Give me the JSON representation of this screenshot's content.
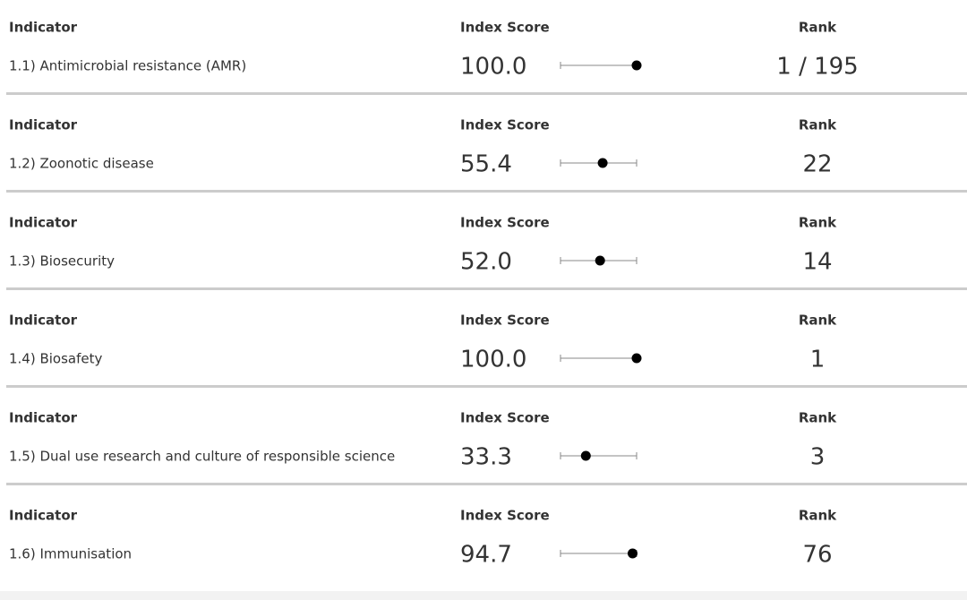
{
  "columns": [
    "Indicator",
    "Index Score",
    "Rank"
  ],
  "score_range": [
    0,
    100
  ],
  "rows": [
    {
      "indicator": "1.1) Antimicrobial resistance (AMR)",
      "score": {
        "value": 100,
        "label": "100.0"
      },
      "rank": "1 / 195"
    },
    {
      "indicator": "1.2) Zoonotic disease",
      "score": {
        "value": 55.4,
        "label": "55.4"
      },
      "rank": 22
    },
    {
      "indicator": "1.3) Biosecurity",
      "score": {
        "value": 52,
        "label": "52.0"
      },
      "rank": 14
    },
    {
      "indicator": "1.4) Biosafety",
      "score": {
        "value": 100,
        "label": "100.0"
      },
      "rank": 1
    },
    {
      "indicator": "1.5) Dual use research and culture of responsible science",
      "score": {
        "value": 33.3,
        "label": "33.3"
      },
      "rank": 3
    },
    {
      "indicator": "1.6) Immunisation",
      "score": {
        "value": 94.7,
        "label": "94.7"
      },
      "rank": 76
    }
  ]
}
